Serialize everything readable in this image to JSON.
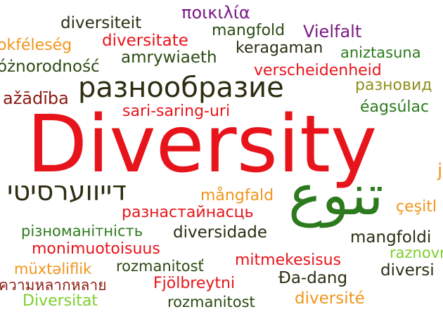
{
  "words": {
    "diversity": "Diversity",
    "hebrew": "דייווערסיטי",
    "arabic": "تنوع",
    "russian": "разнообразие",
    "poikilia": "ποικιλία",
    "diversiteit": "diversiteit",
    "okfeleseg": "okféleség",
    "diversitate": "diversitate",
    "mangfold": "mangfold",
    "vielfalt": "Vielfalt",
    "amrywiaeth": "amrywiaeth",
    "keragaman": "keragaman",
    "aniztasuna": "aniztasuna",
    "roznorodnosc": "óżnorodność",
    "verscheidenheid": "verscheidenheid",
    "daudzveidiba": "ažādība",
    "raznovid": "разновид",
    "sari_saring_uri": "sari-saring-uri",
    "eagsulacht": "éagsúlac",
    "mangfald": "mångfald",
    "razhastainasc": "разнастайнасць",
    "cesitl": "çeşitl",
    "riznomanitnist": "різноманітність",
    "diversidade": "diversidade",
    "mangfoldi": "mangfoldi",
    "monimuotoisuus": "monimuotoisuus",
    "raznovrs": "raznovrs",
    "muxteliflik": "müxtəliflik",
    "rozmanitost_acc": "rozmanitosť",
    "mitmekesisus": "mitmekesisus",
    "diversi": "diversi",
    "thai": "ความหลากหลาย",
    "fjolbreytni": "Fjölbreytni",
    "da_dang": "Đa-dang",
    "diversitat": "Diversitat",
    "rozmanitost": "rozmanitost",
    "diversite": "diversité",
    "edge_j": "j"
  }
}
